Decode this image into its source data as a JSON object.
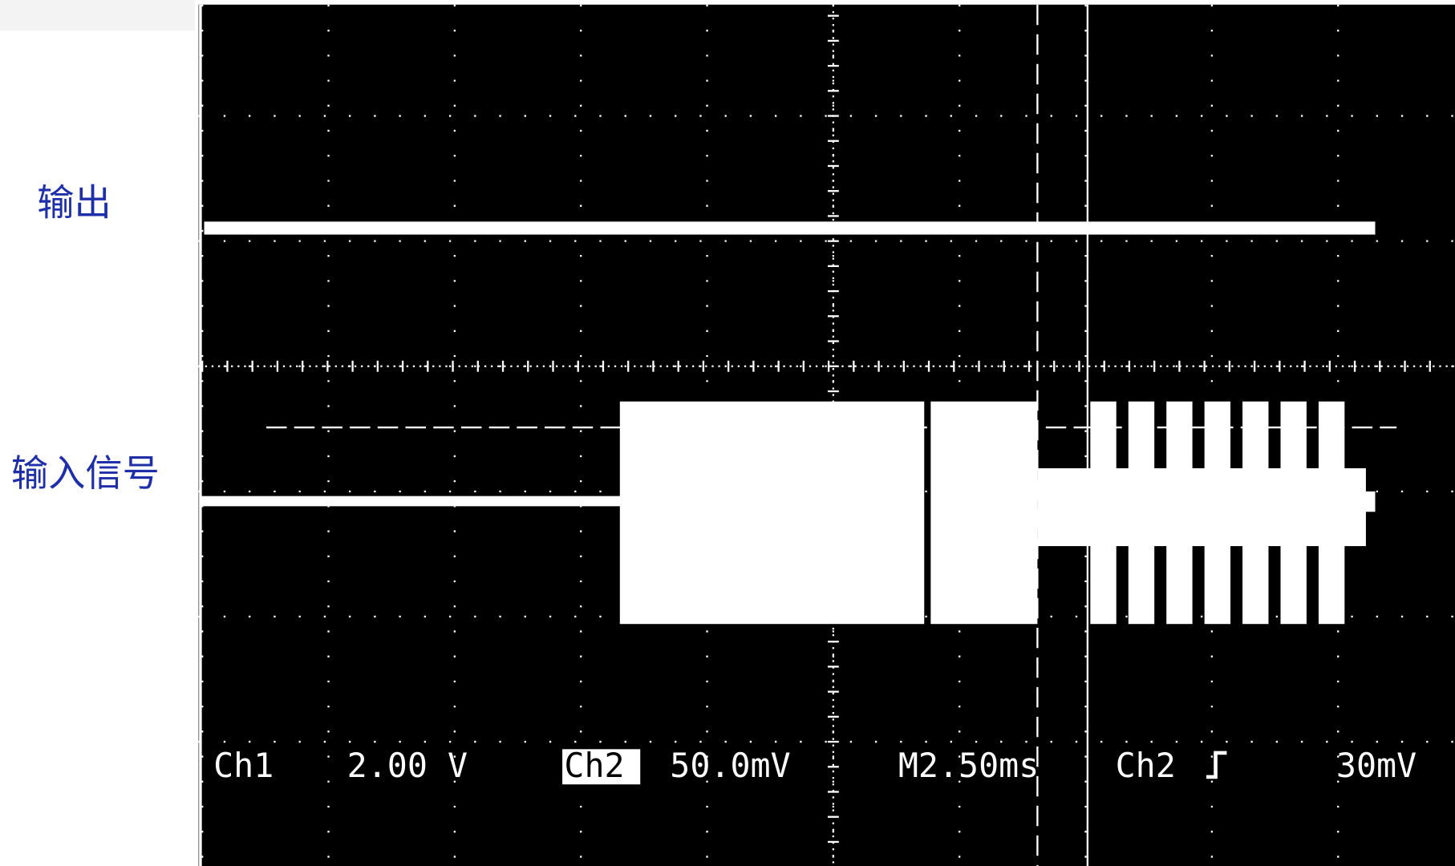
{
  "labels": {
    "output": "输出",
    "input": "输入信号"
  },
  "readout": {
    "ch1": "Ch1",
    "ch1_scale": "2.00 V",
    "ch2": "Ch2",
    "ch2_scale": "50.0mV",
    "timebase": "M2.50ms",
    "trigger_source": "Ch2",
    "trigger_level": "30mV"
  }
}
